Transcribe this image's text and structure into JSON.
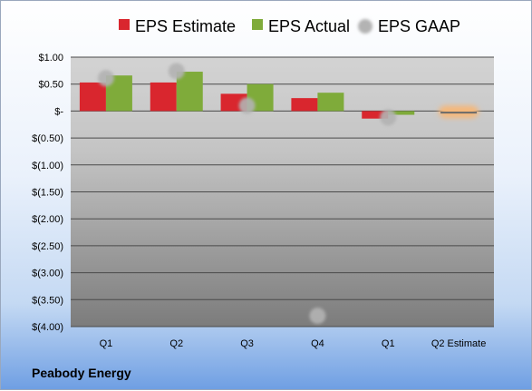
{
  "company": "Peabody Energy",
  "legend": {
    "estimate": "EPS Estimate",
    "actual": "EPS Actual",
    "gaap": "EPS GAAP"
  },
  "colors": {
    "estimate": "#d9262e",
    "actual": "#7fab3a",
    "gaap": "#b3b3b3",
    "estimate_highlight": "#f5b87a"
  },
  "chart_data": {
    "type": "bar",
    "categories": [
      "Q1",
      "Q2",
      "Q3",
      "Q4",
      "Q1",
      "Q2 Estimate"
    ],
    "series": [
      {
        "name": "EPS Estimate",
        "values": [
          0.53,
          0.53,
          0.32,
          0.24,
          -0.14,
          -0.03
        ]
      },
      {
        "name": "EPS Actual",
        "values": [
          0.66,
          0.73,
          0.5,
          0.34,
          -0.07,
          null
        ]
      },
      {
        "name": "EPS GAAP",
        "values": [
          0.61,
          0.74,
          0.1,
          -3.8,
          -0.12,
          null
        ]
      }
    ],
    "y_ticks": [
      "$1.00",
      "$0.50",
      "$-",
      "$(0.50)",
      "$(1.00)",
      "$(1.50)",
      "$(2.00)",
      "$(2.50)",
      "$(3.00)",
      "$(3.50)",
      "$(4.00)"
    ],
    "ylim": [
      -4.0,
      1.0
    ],
    "grid": true,
    "legend_position": "top"
  }
}
